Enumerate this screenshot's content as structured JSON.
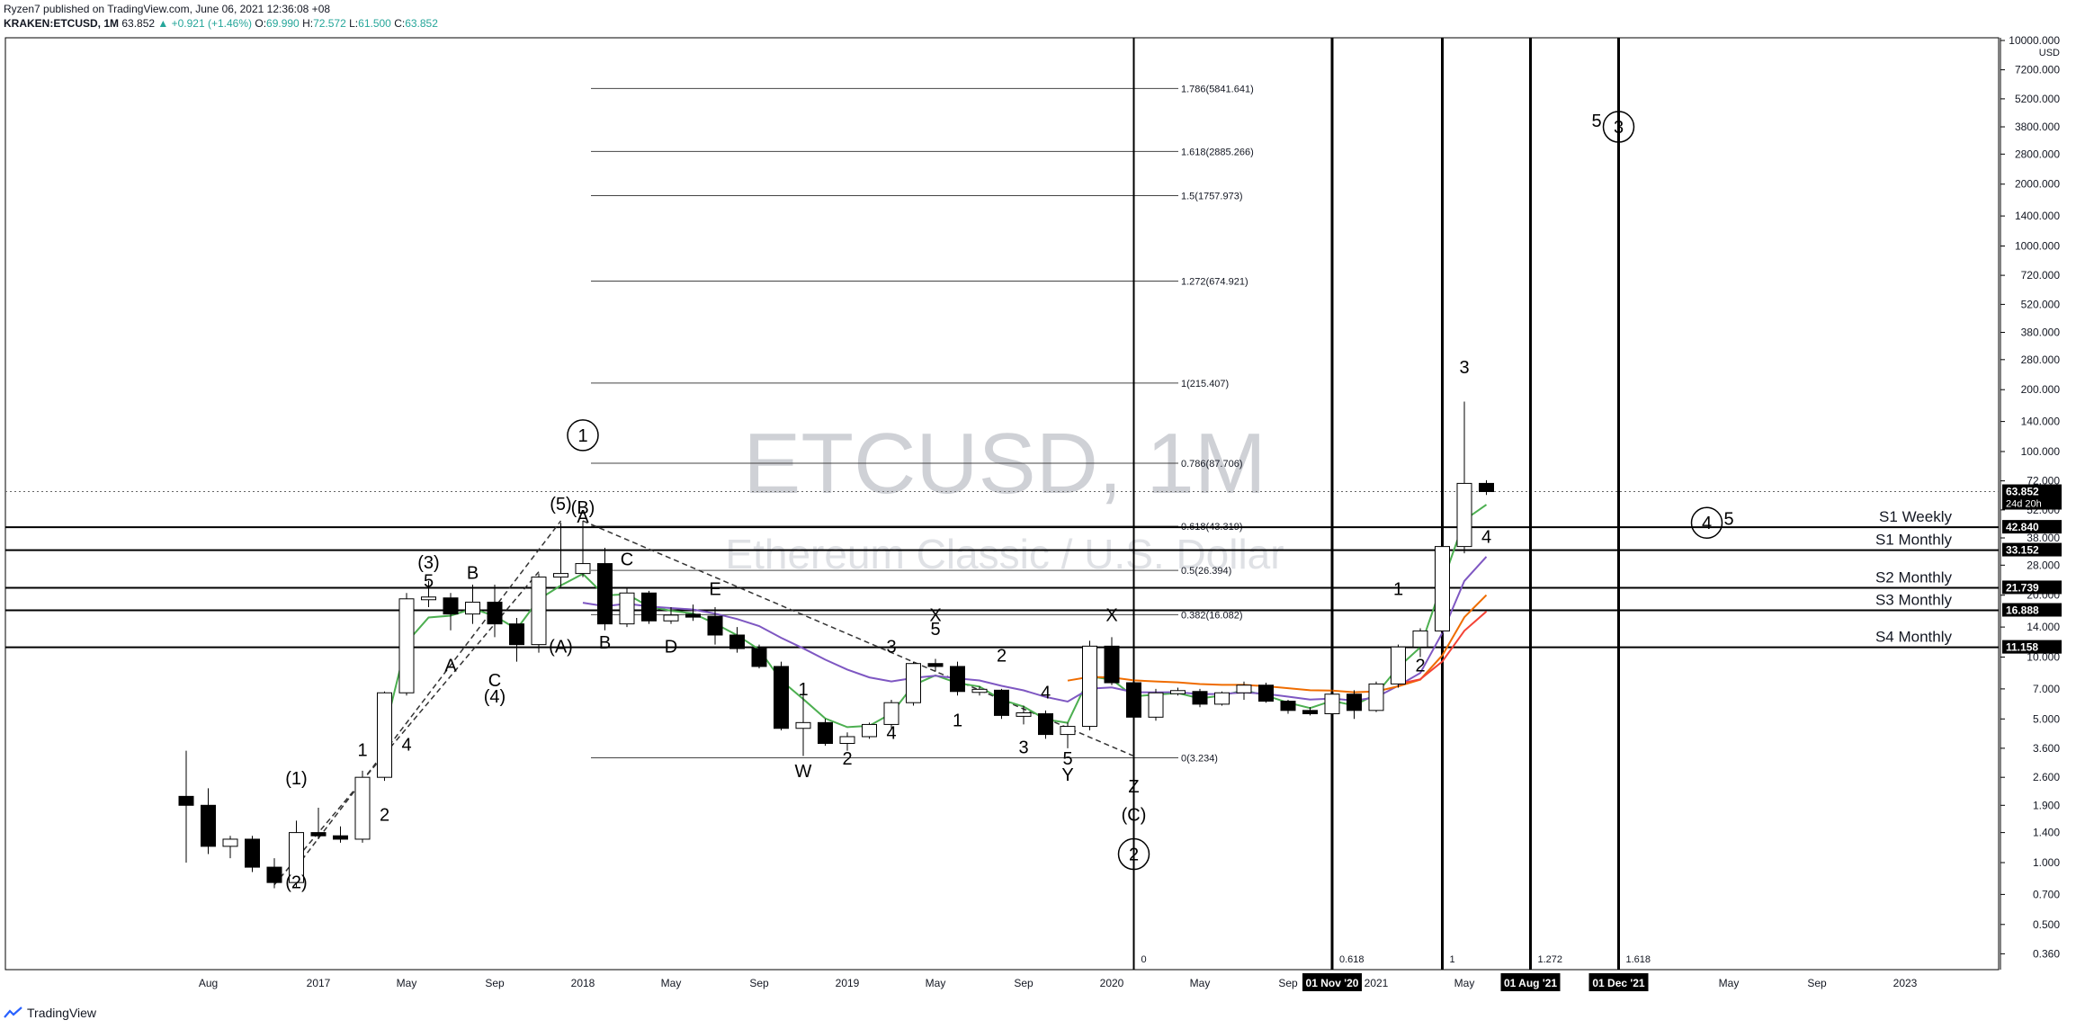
{
  "header": {
    "publisher_line": "Ryzen7 published on TradingView.com, June 06, 2021 12:36:08 +08",
    "symbol": "KRAKEN:ETCUSD, 1M",
    "last": "63.852",
    "change": "▲ +0.921 (+1.46%)",
    "o_label": "O:",
    "o": "69.990",
    "h_label": "H:",
    "h": "72.572",
    "l_label": "L:",
    "l": "61.500",
    "c_label": "C:",
    "c": "63.852"
  },
  "watermark": {
    "title": "ETCUSD, 1M",
    "subtitle": "Ethereum Classic / U.S. Dollar"
  },
  "footer": {
    "brand": "TradingView"
  },
  "colors": {
    "up_candle": "#ffffff",
    "down_candle": "#000000",
    "ema_green": "#4caf50",
    "ema_purple": "#7e57c2",
    "ema_orange": "#ef6c00",
    "ema_red": "#f44336",
    "accent": "#2962ff"
  },
  "chart_data": {
    "type": "candlestick",
    "title": "ETCUSD, 1M",
    "y_scale": "log",
    "y_axis_unit": "USD",
    "y_ticks": [
      "10000.000",
      "7200.000",
      "5200.000",
      "3800.000",
      "2800.000",
      "2000.000",
      "1400.000",
      "1000.000",
      "720.000",
      "520.000",
      "380.000",
      "280.000",
      "200.000",
      "140.000",
      "100.000",
      "72.000",
      "52.000",
      "38.000",
      "28.000",
      "20.000",
      "14.000",
      "10.000",
      "7.000",
      "5.000",
      "3.600",
      "2.600",
      "1.900",
      "1.400",
      "1.000",
      "0.700",
      "0.500",
      "0.360"
    ],
    "x_ticks": [
      "Aug",
      "2017",
      "May",
      "Sep",
      "2018",
      "May",
      "Sep",
      "2019",
      "May",
      "Sep",
      "2020",
      "May",
      "Sep",
      "01 Nov '20",
      "2021",
      "May",
      "01 Aug '21",
      "01 Dec '21",
      "May",
      "Sep",
      "2023"
    ],
    "price_labels": [
      {
        "value": "63.852",
        "sub": "24d 20h"
      },
      {
        "value": "42.840"
      },
      {
        "value": "33.152"
      },
      {
        "value": "21.739"
      },
      {
        "value": "16.888"
      },
      {
        "value": "11.158"
      }
    ],
    "levels": [
      {
        "name": "S1 Weekly",
        "value": 42.84
      },
      {
        "name": "S1 Monthly",
        "value": 33.152
      },
      {
        "name": "S2 Monthly",
        "value": 21.739
      },
      {
        "name": "S3 Monthly",
        "value": 16.888
      },
      {
        "name": "S4 Monthly",
        "value": 11.158
      }
    ],
    "fib_levels": [
      {
        "label": "1.786(5841.641)",
        "value": 5841.641
      },
      {
        "label": "1.618(2885.266)",
        "value": 2885.266
      },
      {
        "label": "1.5(1757.973)",
        "value": 1757.973
      },
      {
        "label": "1.272(674.921)",
        "value": 674.921
      },
      {
        "label": "1(215.407)",
        "value": 215.407
      },
      {
        "label": "0.786(87.706)",
        "value": 87.706
      },
      {
        "label": "0.618(43.319)",
        "value": 43.319
      },
      {
        "label": "0.5(26.394)",
        "value": 26.394
      },
      {
        "label": "0.382(16.082)",
        "value": 16.082
      },
      {
        "label": "0(3.234)",
        "value": 3.234
      }
    ],
    "time_fib": [
      "0",
      "0.618",
      "1",
      "1.272",
      "1.618"
    ],
    "candles": [
      {
        "t": "2016-07",
        "o": 2.1,
        "h": 3.5,
        "l": 1.0,
        "c": 1.9
      },
      {
        "t": "2016-08",
        "o": 1.9,
        "h": 2.3,
        "l": 1.1,
        "c": 1.2
      },
      {
        "t": "2016-09",
        "o": 1.2,
        "h": 1.35,
        "l": 1.05,
        "c": 1.3
      },
      {
        "t": "2016-10",
        "o": 1.3,
        "h": 1.35,
        "l": 0.9,
        "c": 0.95
      },
      {
        "t": "2016-11",
        "o": 0.95,
        "h": 1.05,
        "l": 0.75,
        "c": 0.8
      },
      {
        "t": "2016-12",
        "o": 0.8,
        "h": 1.6,
        "l": 0.75,
        "c": 1.4
      },
      {
        "t": "2017-01",
        "o": 1.4,
        "h": 1.85,
        "l": 1.3,
        "c": 1.35
      },
      {
        "t": "2017-02",
        "o": 1.35,
        "h": 1.5,
        "l": 1.25,
        "c": 1.3
      },
      {
        "t": "2017-03",
        "o": 1.3,
        "h": 2.8,
        "l": 1.25,
        "c": 2.6
      },
      {
        "t": "2017-04",
        "o": 2.6,
        "h": 6.8,
        "l": 2.5,
        "c": 6.7
      },
      {
        "t": "2017-05",
        "o": 6.7,
        "h": 20.5,
        "l": 6.5,
        "c": 19.2
      },
      {
        "t": "2017-06",
        "o": 19.2,
        "h": 23.5,
        "l": 17.5,
        "c": 19.4
      },
      {
        "t": "2017-07",
        "o": 19.4,
        "h": 20.5,
        "l": 13.5,
        "c": 16.2
      },
      {
        "t": "2017-08",
        "o": 16.2,
        "h": 22.5,
        "l": 14.5,
        "c": 18.5
      },
      {
        "t": "2017-09",
        "o": 18.5,
        "h": 22.5,
        "l": 12.5,
        "c": 14.5
      },
      {
        "t": "2017-10",
        "o": 14.5,
        "h": 15.5,
        "l": 9.5,
        "c": 11.5
      },
      {
        "t": "2017-11",
        "o": 11.5,
        "h": 25.5,
        "l": 10.5,
        "c": 24.5
      },
      {
        "t": "2017-12",
        "o": 24.5,
        "h": 45.0,
        "l": 22.0,
        "c": 25.5
      },
      {
        "t": "2018-01",
        "o": 25.5,
        "h": 46.0,
        "l": 24.5,
        "c": 28.5
      },
      {
        "t": "2018-02",
        "o": 28.5,
        "h": 34.0,
        "l": 13.5,
        "c": 14.5
      },
      {
        "t": "2018-03",
        "o": 14.5,
        "h": 21.5,
        "l": 14.0,
        "c": 20.5
      },
      {
        "t": "2018-04",
        "o": 20.5,
        "h": 21.0,
        "l": 14.5,
        "c": 15.0
      },
      {
        "t": "2018-05",
        "o": 15.0,
        "h": 17.5,
        "l": 14.5,
        "c": 16.0
      },
      {
        "t": "2018-06",
        "o": 16.0,
        "h": 18.0,
        "l": 15.0,
        "c": 15.8
      },
      {
        "t": "2018-07",
        "o": 15.8,
        "h": 17.5,
        "l": 11.5,
        "c": 12.8
      },
      {
        "t": "2018-08",
        "o": 12.8,
        "h": 14.0,
        "l": 10.5,
        "c": 11.0
      },
      {
        "t": "2018-09",
        "o": 11.0,
        "h": 11.5,
        "l": 8.8,
        "c": 9.0
      },
      {
        "t": "2018-10",
        "o": 9.0,
        "h": 9.5,
        "l": 4.4,
        "c": 4.5
      },
      {
        "t": "2018-11",
        "o": 4.5,
        "h": 6.8,
        "l": 3.3,
        "c": 4.8
      },
      {
        "t": "2018-12",
        "o": 4.8,
        "h": 5.0,
        "l": 3.7,
        "c": 3.8
      },
      {
        "t": "2019-01",
        "o": 3.8,
        "h": 4.3,
        "l": 3.5,
        "c": 4.1
      },
      {
        "t": "2019-02",
        "o": 4.1,
        "h": 4.8,
        "l": 4.0,
        "c": 4.7
      },
      {
        "t": "2019-03",
        "o": 4.7,
        "h": 6.2,
        "l": 4.5,
        "c": 6.0
      },
      {
        "t": "2019-04",
        "o": 6.0,
        "h": 9.5,
        "l": 5.8,
        "c": 9.3
      },
      {
        "t": "2019-05",
        "o": 9.3,
        "h": 9.8,
        "l": 8.5,
        "c": 9.0
      },
      {
        "t": "2019-06",
        "o": 9.0,
        "h": 9.5,
        "l": 6.5,
        "c": 6.8
      },
      {
        "t": "2019-07",
        "o": 6.8,
        "h": 7.2,
        "l": 6.5,
        "c": 6.9
      },
      {
        "t": "2019-08",
        "o": 6.9,
        "h": 7.0,
        "l": 5.0,
        "c": 5.2
      },
      {
        "t": "2019-09",
        "o": 5.2,
        "h": 5.8,
        "l": 4.7,
        "c": 5.3
      },
      {
        "t": "2019-10",
        "o": 5.3,
        "h": 5.5,
        "l": 4.0,
        "c": 4.2
      },
      {
        "t": "2019-11",
        "o": 4.2,
        "h": 4.8,
        "l": 3.6,
        "c": 4.6
      },
      {
        "t": "2019-12",
        "o": 4.6,
        "h": 12.0,
        "l": 4.4,
        "c": 11.3
      },
      {
        "t": "2020-01",
        "o": 11.3,
        "h": 12.5,
        "l": 7.3,
        "c": 7.5
      },
      {
        "t": "2020-02",
        "o": 7.5,
        "h": 7.8,
        "l": 3.9,
        "c": 5.1
      },
      {
        "t": "2020-03",
        "o": 5.1,
        "h": 7.0,
        "l": 4.9,
        "c": 6.7
      },
      {
        "t": "2020-04",
        "o": 6.7,
        "h": 7.1,
        "l": 6.5,
        "c": 6.8
      },
      {
        "t": "2020-05",
        "o": 6.8,
        "h": 7.0,
        "l": 5.7,
        "c": 5.9
      },
      {
        "t": "2020-06",
        "o": 5.9,
        "h": 6.8,
        "l": 5.8,
        "c": 6.7
      },
      {
        "t": "2020-07",
        "o": 6.7,
        "h": 7.6,
        "l": 6.2,
        "c": 7.3
      },
      {
        "t": "2020-08",
        "o": 7.3,
        "h": 7.5,
        "l": 6.0,
        "c": 6.1
      },
      {
        "t": "2020-09",
        "o": 6.1,
        "h": 6.2,
        "l": 5.3,
        "c": 5.5
      },
      {
        "t": "2020-10",
        "o": 5.5,
        "h": 5.7,
        "l": 5.2,
        "c": 5.3
      },
      {
        "t": "2020-11",
        "o": 5.3,
        "h": 7.0,
        "l": 5.1,
        "c": 6.6
      },
      {
        "t": "2020-12",
        "o": 6.6,
        "h": 6.9,
        "l": 5.0,
        "c": 5.5
      },
      {
        "t": "2021-01",
        "o": 5.5,
        "h": 7.6,
        "l": 5.4,
        "c": 7.4
      },
      {
        "t": "2021-02",
        "o": 7.4,
        "h": 11.5,
        "l": 7.1,
        "c": 11.2
      },
      {
        "t": "2021-03",
        "o": 11.2,
        "h": 13.8,
        "l": 10.0,
        "c": 13.4
      },
      {
        "t": "2021-04",
        "o": 13.4,
        "h": 36.0,
        "l": 13.0,
        "c": 34.5
      },
      {
        "t": "2021-05",
        "o": 34.5,
        "h": 175.0,
        "l": 32.0,
        "c": 69.99
      },
      {
        "t": "2021-06",
        "o": 69.99,
        "h": 72.572,
        "l": 61.5,
        "c": 63.852
      }
    ],
    "wave_labels": [
      {
        "text": "(2)",
        "t": "2016-12",
        "v": 0.75,
        "pos": "below"
      },
      {
        "text": "(1)",
        "t": "2016-12",
        "v": 2.4,
        "pos": "above"
      },
      {
        "text": "1",
        "t": "2017-03",
        "v": 3.3,
        "pos": "above"
      },
      {
        "text": "2",
        "t": "2017-04",
        "v": 1.6,
        "pos": "below"
      },
      {
        "text": "4",
        "t": "2017-05",
        "v": 3.5,
        "pos": "below"
      },
      {
        "text": "(3)",
        "t": "2017-06",
        "v": 27,
        "pos": "above"
      },
      {
        "text": "5",
        "t": "2017-06",
        "v": 22,
        "pos": "above"
      },
      {
        "text": "A",
        "t": "2017-07",
        "v": 8.5,
        "pos": "below"
      },
      {
        "text": "B",
        "t": "2017-08",
        "v": 24,
        "pos": "above"
      },
      {
        "text": "C",
        "t": "2017-09",
        "v": 7.2,
        "pos": "below"
      },
      {
        "text": "(4)",
        "t": "2017-09",
        "v": 6.0,
        "pos": "below"
      },
      {
        "text": "(5)",
        "t": "2017-12",
        "v": 52,
        "pos": "above"
      },
      {
        "text": "(B)",
        "t": "2018-01",
        "v": 50,
        "pos": "above"
      },
      {
        "text": "A",
        "t": "2018-01",
        "v": 45,
        "pos": "above"
      },
      {
        "text": "(A)",
        "t": "2017-12",
        "v": 10.5,
        "pos": "below"
      },
      {
        "text": "B",
        "t": "2018-02",
        "v": 11,
        "pos": "below"
      },
      {
        "text": "C",
        "t": "2018-03",
        "v": 28,
        "pos": "above"
      },
      {
        "text": "D",
        "t": "2018-05",
        "v": 10.5,
        "pos": "below"
      },
      {
        "text": "E",
        "t": "2018-07",
        "v": 20,
        "pos": "above"
      },
      {
        "text": "1",
        "t": "2018-11",
        "v": 6.5,
        "pos": "above"
      },
      {
        "text": "W",
        "t": "2018-11",
        "v": 2.6,
        "pos": "below"
      },
      {
        "text": "2",
        "t": "2019-01",
        "v": 3.0,
        "pos": "below"
      },
      {
        "text": "3",
        "t": "2019-03",
        "v": 10.5,
        "pos": "above"
      },
      {
        "text": "4",
        "t": "2019-03",
        "v": 4.0,
        "pos": "below"
      },
      {
        "text": "X",
        "t": "2019-05",
        "v": 15,
        "pos": "above"
      },
      {
        "text": "5",
        "t": "2019-05",
        "v": 12.8,
        "pos": "above"
      },
      {
        "text": "1",
        "t": "2019-06",
        "v": 4.6,
        "pos": "below"
      },
      {
        "text": "2",
        "t": "2019-08",
        "v": 9.5,
        "pos": "above"
      },
      {
        "text": "3",
        "t": "2019-09",
        "v": 3.4,
        "pos": "below"
      },
      {
        "text": "4",
        "t": "2019-10",
        "v": 6.3,
        "pos": "above"
      },
      {
        "text": "5",
        "t": "2019-11",
        "v": 3.0,
        "pos": "below"
      },
      {
        "text": "Y",
        "t": "2019-11",
        "v": 2.5,
        "pos": "below"
      },
      {
        "text": "X",
        "t": "2020-01",
        "v": 15,
        "pos": "above"
      },
      {
        "text": "Z",
        "t": "2020-02",
        "v": 2.2,
        "pos": "below"
      },
      {
        "text": "(C)",
        "t": "2020-02",
        "v": 1.6,
        "pos": "below"
      },
      {
        "text": "1",
        "t": "2021-02",
        "v": 20,
        "pos": "above"
      },
      {
        "text": "2",
        "t": "2021-03",
        "v": 8.5,
        "pos": "below"
      },
      {
        "text": "3",
        "t": "2021-05",
        "v": 240,
        "pos": "above"
      },
      {
        "text": "4",
        "t": "2021-06",
        "v": 36,
        "pos": "below"
      },
      {
        "text": "5",
        "t": "2021-11",
        "v": 3800,
        "pos": "above"
      },
      {
        "text": "5",
        "t": "2022-05",
        "v": 44,
        "pos": "above"
      }
    ],
    "circled_labels": [
      {
        "text": "1",
        "t": "2018-01",
        "v": 120
      },
      {
        "text": "2",
        "t": "2020-02",
        "v": 1.1
      },
      {
        "text": "3",
        "t": "2021-12",
        "v": 3800
      },
      {
        "text": "4",
        "t": "2022-04",
        "v": 45
      }
    ]
  }
}
